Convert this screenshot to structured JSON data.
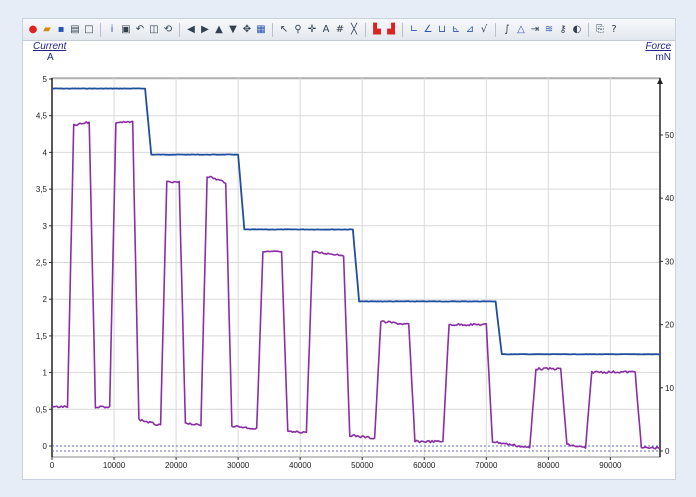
{
  "toolbar": {
    "icons": [
      "record-icon",
      "open-icon",
      "save-icon",
      "print-icon",
      "frame-icon",
      "info-icon",
      "window-icon",
      "undo-icon",
      "zoom-box-icon",
      "refresh-icon",
      "arrow-left-icon",
      "arrow-right-icon",
      "arrow-up-icon",
      "arrow-down-icon",
      "move-icon",
      "chart-settings-icon",
      "pointer-icon",
      "zoom-icon",
      "crosshair-icon",
      "text-icon",
      "grid-icon",
      "fit-icon",
      "bar-left-icon",
      "bar-right-icon",
      "analysis1-icon",
      "analysis2-icon",
      "analysis3-icon",
      "analysis4-icon",
      "analysis5-icon",
      "sqrt-icon",
      "integral-icon",
      "triangle-icon",
      "filter-icon",
      "fft-icon",
      "measure-icon",
      "audio-icon",
      "export-icon",
      "help-icon"
    ]
  },
  "chart_data": {
    "type": "line",
    "left_axis": {
      "label": "Current",
      "unit": "A",
      "ylim": [
        0,
        5
      ],
      "ticks": [
        "0",
        "0,5",
        "1",
        "1,5",
        "2",
        "2,5",
        "3",
        "3,5",
        "4",
        "4,5",
        "5"
      ]
    },
    "right_axis": {
      "label": "Force",
      "unit": "mN",
      "ylim": [
        0,
        60
      ],
      "ticks": [
        "0",
        "10",
        "20",
        "30",
        "40",
        "50"
      ]
    },
    "x_axis": {
      "xlim": [
        0,
        98000
      ],
      "ticks": [
        "0",
        "10000",
        "20000",
        "30000",
        "40000",
        "50000",
        "60000",
        "70000",
        "80000",
        "90000"
      ]
    },
    "grid": true,
    "series": [
      {
        "axis": "left",
        "color": "#1f4e9e",
        "x": [
          0,
          15000,
          16000,
          30000,
          31000,
          48500,
          49500,
          71500,
          72500,
          98000
        ],
        "y": [
          4.87,
          4.87,
          3.97,
          3.97,
          2.95,
          2.95,
          1.97,
          1.97,
          1.25,
          1.25
        ]
      },
      {
        "axis": "right",
        "color": "#8a2ea5",
        "x": [
          0,
          2500,
          3500,
          6000,
          7000,
          9300,
          10300,
          13000,
          14000,
          17500,
          18500,
          20500,
          21500,
          24000,
          25000,
          28000,
          29000,
          33000,
          34000,
          37000,
          38000,
          41000,
          42000,
          47000,
          48000,
          52000,
          53000,
          57500,
          58500,
          63000,
          64000,
          70000,
          71000,
          77000,
          78000,
          82000,
          83000,
          86000,
          87000,
          94000,
          95000,
          98000
        ],
        "y": [
          7,
          7,
          51.5,
          52,
          7,
          7,
          52,
          52,
          5,
          4,
          42.5,
          42.5,
          4.5,
          4,
          43.5,
          42.5,
          4,
          3.5,
          31.5,
          31.5,
          3,
          3,
          31.5,
          31,
          2.5,
          2,
          20.5,
          20,
          1.5,
          1.5,
          20,
          20,
          1.5,
          0.5,
          13,
          13,
          1,
          0.5,
          12.5,
          12.5,
          0.5,
          0.5
        ]
      }
    ]
  }
}
